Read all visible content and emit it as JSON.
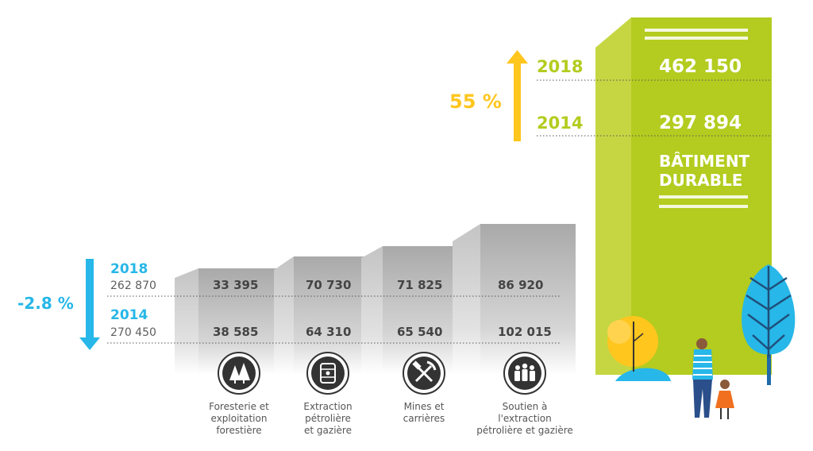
{
  "colors": {
    "green": "#B3CC1F",
    "green_side": "#C5D642",
    "yellow": "#FFC61E",
    "blue": "#27B7E8",
    "grey": "#B3B3B3",
    "text_grey": "#5E5E5E"
  },
  "chart_data": {
    "type": "bar",
    "categories": [
      "Foresterie et exploitation forestière",
      "Extraction pétrolière et gazière",
      "Mines et carrières",
      "Soutien à l'extraction pétrolière et gazière",
      "BÂTIMENT DURABLE"
    ],
    "series": [
      {
        "name": "2018",
        "values": [
          33395,
          70730,
          71825,
          86920,
          462150
        ]
      },
      {
        "name": "2014",
        "values": [
          38585,
          64310,
          65540,
          102015,
          297894
        ]
      }
    ],
    "title": "",
    "xlabel": "",
    "ylabel": ""
  },
  "left_summary": {
    "change": "-2.8 %",
    "year_a": "2018",
    "value_a": "262 870",
    "year_b": "2014",
    "value_b": "270 450"
  },
  "right_summary": {
    "change": "55 %",
    "year_a": "2018",
    "value_a": "462 150",
    "year_b": "2014",
    "value_b": "297 894",
    "label_line1": "BÂTIMENT",
    "label_line2": "DURABLE"
  },
  "bars": [
    {
      "v2018": "33 395",
      "v2014": "38 585",
      "icon": "trees-icon",
      "label_lines": [
        "Foresterie et",
        "exploitation",
        "forestière"
      ]
    },
    {
      "v2018": "70 730",
      "v2014": "64 310",
      "icon": "oil-barrel-icon",
      "label_lines": [
        "Extraction",
        "pétrolière",
        "et gazière"
      ]
    },
    {
      "v2018": "71 825",
      "v2014": "65 540",
      "icon": "pickaxe-hammer-icon",
      "label_lines": [
        "Mines et",
        "carrières"
      ]
    },
    {
      "v2018": "86 920",
      "v2014": "102 015",
      "icon": "workers-group-icon",
      "label_lines": [
        "Soutien à",
        "l'extraction",
        "pétrolière et gazière"
      ]
    }
  ]
}
